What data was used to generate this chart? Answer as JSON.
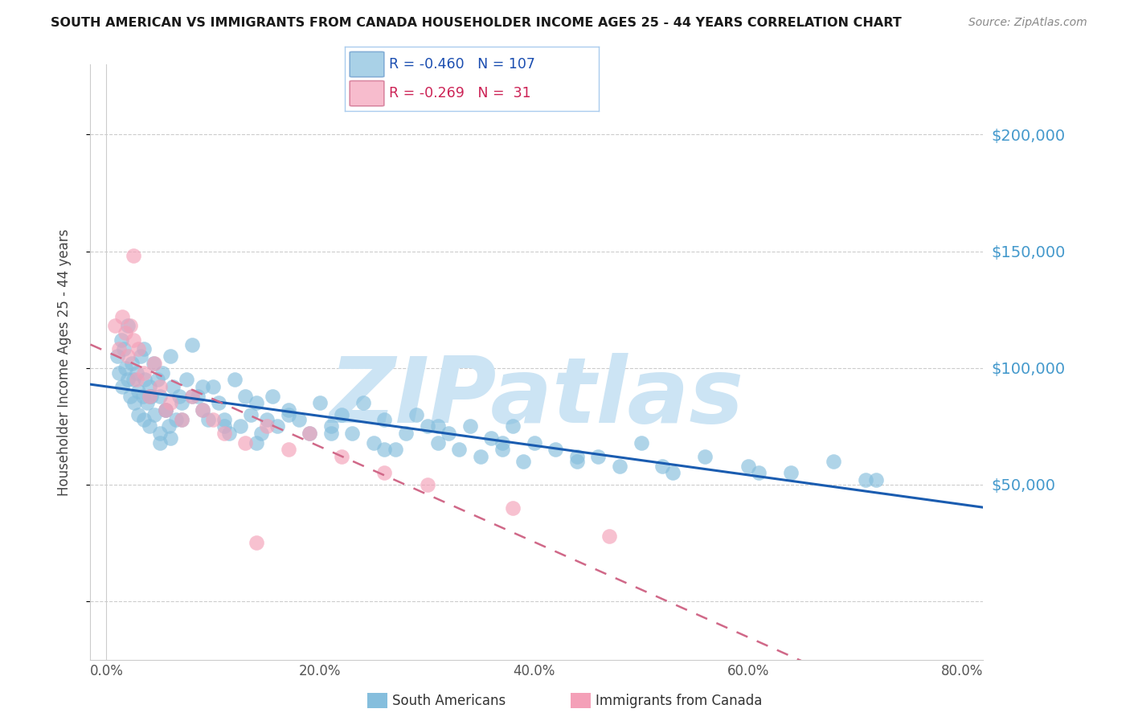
{
  "title": "SOUTH AMERICAN VS IMMIGRANTS FROM CANADA HOUSEHOLDER INCOME AGES 25 - 44 YEARS CORRELATION CHART",
  "source": "Source: ZipAtlas.com",
  "ylabel": "Householder Income Ages 25 - 44 years",
  "ytick_vals": [
    0,
    50000,
    100000,
    150000,
    200000
  ],
  "ytick_labels": [
    "",
    "$50,000",
    "$100,000",
    "$150,000",
    "$200,000"
  ],
  "xtick_vals": [
    0.0,
    20.0,
    40.0,
    60.0,
    80.0
  ],
  "xtick_labels": [
    "0.0%",
    "20.0%",
    "40.0%",
    "60.0%",
    "80.0%"
  ],
  "ymax": 230000,
  "ymin": -25000,
  "xmin": -1.5,
  "xmax": 82.0,
  "legend_r_blue": "-0.460",
  "legend_n_blue": "107",
  "legend_r_pink": "-0.269",
  "legend_n_pink": " 31",
  "blue_color": "#85bedd",
  "pink_color": "#f4a0b8",
  "blue_line_color": "#1a5cb0",
  "pink_line_color": "#d06888",
  "watermark": "ZIPatlas",
  "watermark_color": "#cce4f4",
  "blue_scatter_x": [
    1.0,
    1.2,
    1.4,
    1.5,
    1.6,
    1.8,
    2.0,
    2.0,
    2.2,
    2.4,
    2.5,
    2.6,
    2.8,
    3.0,
    3.0,
    3.2,
    3.4,
    3.5,
    3.6,
    3.8,
    4.0,
    4.0,
    4.2,
    4.4,
    4.5,
    4.8,
    5.0,
    5.0,
    5.2,
    5.5,
    5.8,
    6.0,
    6.0,
    6.2,
    6.5,
    6.8,
    7.0,
    7.5,
    8.0,
    8.5,
    9.0,
    9.5,
    10.0,
    10.5,
    11.0,
    11.5,
    12.0,
    12.5,
    13.0,
    13.5,
    14.0,
    14.5,
    15.0,
    15.5,
    16.0,
    17.0,
    18.0,
    19.0,
    20.0,
    21.0,
    22.0,
    23.0,
    24.0,
    25.0,
    26.0,
    27.0,
    28.0,
    29.0,
    30.0,
    31.0,
    32.0,
    33.0,
    34.0,
    35.0,
    36.0,
    37.0,
    38.0,
    39.0,
    40.0,
    42.0,
    44.0,
    46.0,
    48.0,
    50.0,
    53.0,
    56.0,
    60.0,
    64.0,
    68.0,
    72.0,
    3.5,
    4.0,
    5.5,
    7.0,
    9.0,
    11.0,
    14.0,
    17.0,
    21.0,
    26.0,
    31.0,
    37.0,
    44.0,
    52.0,
    61.0,
    71.0,
    5.0,
    8.0
  ],
  "blue_scatter_y": [
    105000,
    98000,
    112000,
    92000,
    108000,
    100000,
    95000,
    118000,
    88000,
    102000,
    95000,
    85000,
    98000,
    90000,
    80000,
    105000,
    88000,
    78000,
    95000,
    85000,
    92000,
    75000,
    88000,
    102000,
    80000,
    95000,
    88000,
    72000,
    98000,
    82000,
    75000,
    105000,
    70000,
    92000,
    78000,
    88000,
    85000,
    95000,
    110000,
    88000,
    82000,
    78000,
    92000,
    85000,
    78000,
    72000,
    95000,
    75000,
    88000,
    80000,
    85000,
    72000,
    78000,
    88000,
    75000,
    82000,
    78000,
    72000,
    85000,
    75000,
    80000,
    72000,
    85000,
    68000,
    78000,
    65000,
    72000,
    80000,
    75000,
    68000,
    72000,
    65000,
    75000,
    62000,
    70000,
    65000,
    75000,
    60000,
    68000,
    65000,
    60000,
    62000,
    58000,
    68000,
    55000,
    62000,
    58000,
    55000,
    60000,
    52000,
    108000,
    88000,
    82000,
    78000,
    92000,
    75000,
    68000,
    80000,
    72000,
    65000,
    75000,
    68000,
    62000,
    58000,
    55000,
    52000,
    68000,
    88000
  ],
  "pink_scatter_x": [
    0.8,
    1.2,
    1.5,
    1.8,
    2.0,
    2.2,
    2.5,
    2.8,
    3.0,
    3.5,
    4.0,
    4.5,
    5.0,
    6.0,
    7.0,
    8.0,
    9.0,
    10.0,
    11.0,
    13.0,
    15.0,
    17.0,
    19.0,
    22.0,
    26.0,
    30.0,
    38.0,
    47.0,
    2.5,
    5.5,
    14.0
  ],
  "pink_scatter_y": [
    118000,
    108000,
    122000,
    115000,
    105000,
    118000,
    112000,
    95000,
    108000,
    98000,
    88000,
    102000,
    92000,
    85000,
    78000,
    88000,
    82000,
    78000,
    72000,
    68000,
    75000,
    65000,
    72000,
    62000,
    55000,
    50000,
    40000,
    28000,
    148000,
    82000,
    25000
  ]
}
